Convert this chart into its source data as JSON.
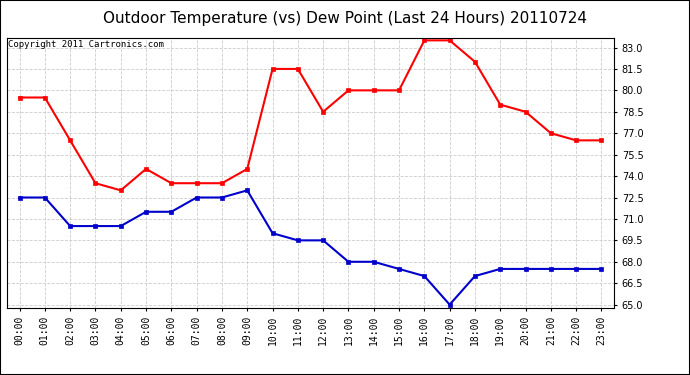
{
  "title": "Outdoor Temperature (vs) Dew Point (Last 24 Hours) 20110724",
  "copyright_text": "Copyright 2011 Cartronics.com",
  "x_labels": [
    "00:00",
    "01:00",
    "02:00",
    "03:00",
    "04:00",
    "05:00",
    "06:00",
    "07:00",
    "08:00",
    "09:00",
    "10:00",
    "11:00",
    "12:00",
    "13:00",
    "14:00",
    "15:00",
    "16:00",
    "17:00",
    "18:00",
    "19:00",
    "20:00",
    "21:00",
    "22:00",
    "23:00"
  ],
  "temp_data": [
    79.5,
    79.5,
    76.5,
    73.5,
    73.0,
    74.5,
    73.5,
    73.5,
    73.5,
    74.5,
    81.5,
    81.5,
    78.5,
    80.0,
    80.0,
    80.0,
    83.5,
    83.5,
    82.0,
    79.0,
    78.5,
    77.0,
    76.5,
    76.5
  ],
  "dew_data": [
    72.5,
    72.5,
    70.5,
    70.5,
    70.5,
    71.5,
    71.5,
    72.5,
    72.5,
    73.0,
    70.0,
    69.5,
    69.5,
    68.0,
    68.0,
    67.5,
    67.0,
    65.0,
    67.0,
    67.5,
    67.5,
    67.5,
    67.5,
    67.5
  ],
  "temp_color": "#ff0000",
  "dew_color": "#0000cc",
  "bg_color": "#ffffff",
  "plot_bg_color": "#ffffff",
  "grid_color": "#cccccc",
  "ylim_min": 65.0,
  "ylim_max": 83.5,
  "yticks": [
    65.0,
    66.5,
    68.0,
    69.5,
    71.0,
    72.5,
    74.0,
    75.5,
    77.0,
    78.5,
    80.0,
    81.5,
    83.0
  ],
  "title_fontsize": 11,
  "copyright_fontsize": 6.5,
  "tick_fontsize": 7,
  "marker_style": "s",
  "marker_size": 3,
  "line_width": 1.5
}
